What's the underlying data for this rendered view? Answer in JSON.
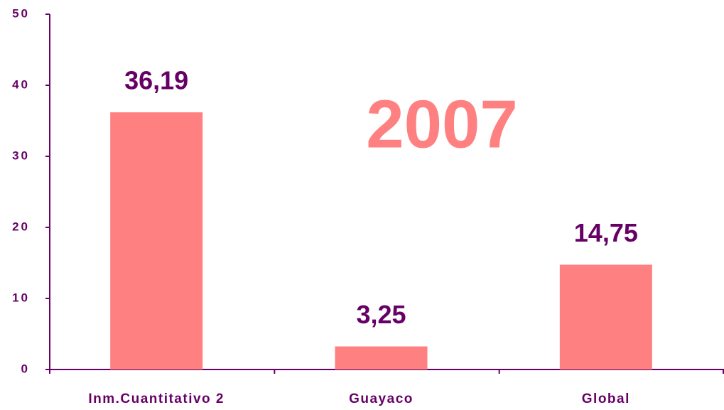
{
  "chart_data": {
    "type": "bar",
    "annotation": "2007",
    "categories": [
      "Inm.Cuantitativo 2",
      "Guayaco",
      "Global"
    ],
    "values": [
      36.19,
      3.25,
      14.75
    ],
    "value_labels": [
      "36,19",
      "3,25",
      "14,75"
    ],
    "color": "#ff8080",
    "ylim": [
      0,
      50
    ],
    "yticks": [
      0,
      10,
      20,
      30,
      40,
      50
    ],
    "grid": false
  }
}
